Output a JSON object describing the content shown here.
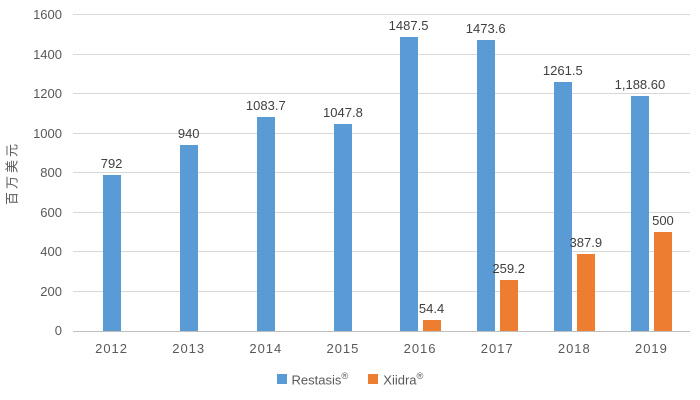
{
  "chart_data": {
    "type": "bar",
    "title": "",
    "ylabel": "百万美元",
    "xlabel": "",
    "categories": [
      "2012",
      "2013",
      "2014",
      "2015",
      "2016",
      "2017",
      "2018",
      "2019"
    ],
    "series": [
      {
        "name": "Restasis®",
        "color": "#5b9bd5",
        "values": [
          792,
          940,
          1083.7,
          1047.8,
          1487.5,
          1473.6,
          1261.5,
          1188.6
        ],
        "labels": [
          "792",
          "940",
          "1083.7",
          "1047.8",
          "1487.5",
          "1473.6",
          "1261.5",
          "1,188.60"
        ]
      },
      {
        "name": "Xiidra®",
        "color": "#ed7d31",
        "values": [
          null,
          null,
          null,
          null,
          54.4,
          259.2,
          387.9,
          500
        ],
        "labels": [
          "",
          "",
          "",
          "",
          "54.4",
          "259.2",
          "387.9",
          "500"
        ]
      }
    ],
    "ylim": [
      0,
      1600
    ],
    "ytick_step": 200,
    "yticks": [
      "0",
      "200",
      "400",
      "600",
      "800",
      "1000",
      "1200",
      "1400",
      "1600"
    ],
    "grid": true,
    "legend_position": "bottom"
  },
  "style": {
    "gridline_color": "#d9d9d9",
    "axis_line_color": "#bfbfbf",
    "tick_label_color": "#595959",
    "value_label_color": "#404040"
  }
}
